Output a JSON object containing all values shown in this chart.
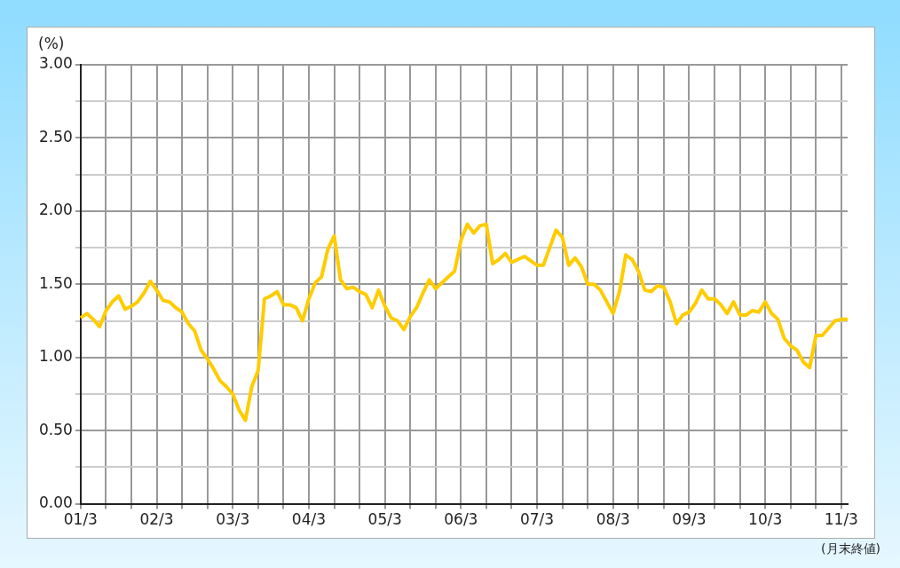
{
  "chart_data": {
    "type": "line",
    "ylabel": "(%)",
    "annotations": [
      "(月末終値)"
    ],
    "categories": [
      "01/3",
      null,
      null,
      null,
      null,
      null,
      null,
      null,
      null,
      null,
      null,
      null,
      "02/3",
      null,
      null,
      null,
      null,
      null,
      null,
      null,
      null,
      null,
      null,
      null,
      "03/3",
      null,
      null,
      null,
      null,
      null,
      null,
      null,
      null,
      null,
      null,
      null,
      "04/3",
      null,
      null,
      null,
      null,
      null,
      null,
      null,
      null,
      null,
      null,
      null,
      "05/3",
      null,
      null,
      null,
      null,
      null,
      null,
      null,
      null,
      null,
      null,
      null,
      "06/3",
      null,
      null,
      null,
      null,
      null,
      null,
      null,
      null,
      null,
      null,
      null,
      "07/3",
      null,
      null,
      null,
      null,
      null,
      null,
      null,
      null,
      null,
      null,
      null,
      "08/3",
      null,
      null,
      null,
      null,
      null,
      null,
      null,
      null,
      null,
      null,
      null,
      "09/3",
      null,
      null,
      null,
      null,
      null,
      null,
      null,
      null,
      null,
      null,
      null,
      "10/3",
      null,
      null,
      null,
      null,
      null,
      null,
      null,
      null,
      null,
      null,
      null,
      "11/3",
      null
    ],
    "series": [
      {
        "color": "#ffcc00",
        "values": [
          1.27,
          1.3,
          1.26,
          1.21,
          1.32,
          1.38,
          1.42,
          1.33,
          1.35,
          1.38,
          1.44,
          1.52,
          1.46,
          1.39,
          1.38,
          1.34,
          1.31,
          1.23,
          1.18,
          1.05,
          0.99,
          0.92,
          0.84,
          0.8,
          0.75,
          0.64,
          0.57,
          0.8,
          0.91,
          1.4,
          1.42,
          1.45,
          1.36,
          1.36,
          1.34,
          1.25,
          1.4,
          1.51,
          1.55,
          1.74,
          1.83,
          1.53,
          1.47,
          1.48,
          1.45,
          1.43,
          1.34,
          1.46,
          1.35,
          1.27,
          1.25,
          1.19,
          1.28,
          1.34,
          1.44,
          1.53,
          1.47,
          1.51,
          1.55,
          1.59,
          1.8,
          1.91,
          1.85,
          1.9,
          1.91,
          1.64,
          1.67,
          1.71,
          1.65,
          1.67,
          1.69,
          1.66,
          1.63,
          1.63,
          1.75,
          1.87,
          1.82,
          1.63,
          1.68,
          1.62,
          1.5,
          1.5,
          1.46,
          1.38,
          1.3,
          1.45,
          1.7,
          1.67,
          1.59,
          1.46,
          1.45,
          1.49,
          1.48,
          1.38,
          1.23,
          1.29,
          1.31,
          1.37,
          1.46,
          1.4,
          1.4,
          1.36,
          1.3,
          1.38,
          1.29,
          1.29,
          1.32,
          1.31,
          1.38,
          1.3,
          1.26,
          1.13,
          1.08,
          1.05,
          0.97,
          0.93,
          1.15,
          1.15,
          1.2,
          1.25,
          1.26,
          1.26
        ]
      }
    ],
    "ylim": [
      0,
      3
    ],
    "yticks": [
      {
        "value": 0,
        "label": "0.00"
      },
      {
        "value": 0.25,
        "label": null
      },
      {
        "value": 0.5,
        "label": "0.50"
      },
      {
        "value": 0.75,
        "label": null
      },
      {
        "value": 1,
        "label": "1.00"
      },
      {
        "value": 1.25,
        "label": null
      },
      {
        "value": 1.5,
        "label": "1.50"
      },
      {
        "value": 1.75,
        "label": null
      },
      {
        "value": 2,
        "label": "2.00"
      },
      {
        "value": 2.25,
        "label": null
      },
      {
        "value": 2.5,
        "label": "2.50"
      },
      {
        "value": 2.75,
        "label": null
      },
      {
        "value": 3,
        "label": "3.00"
      }
    ],
    "grid": true,
    "legend": false,
    "marker": "none",
    "line_style": "solid"
  }
}
